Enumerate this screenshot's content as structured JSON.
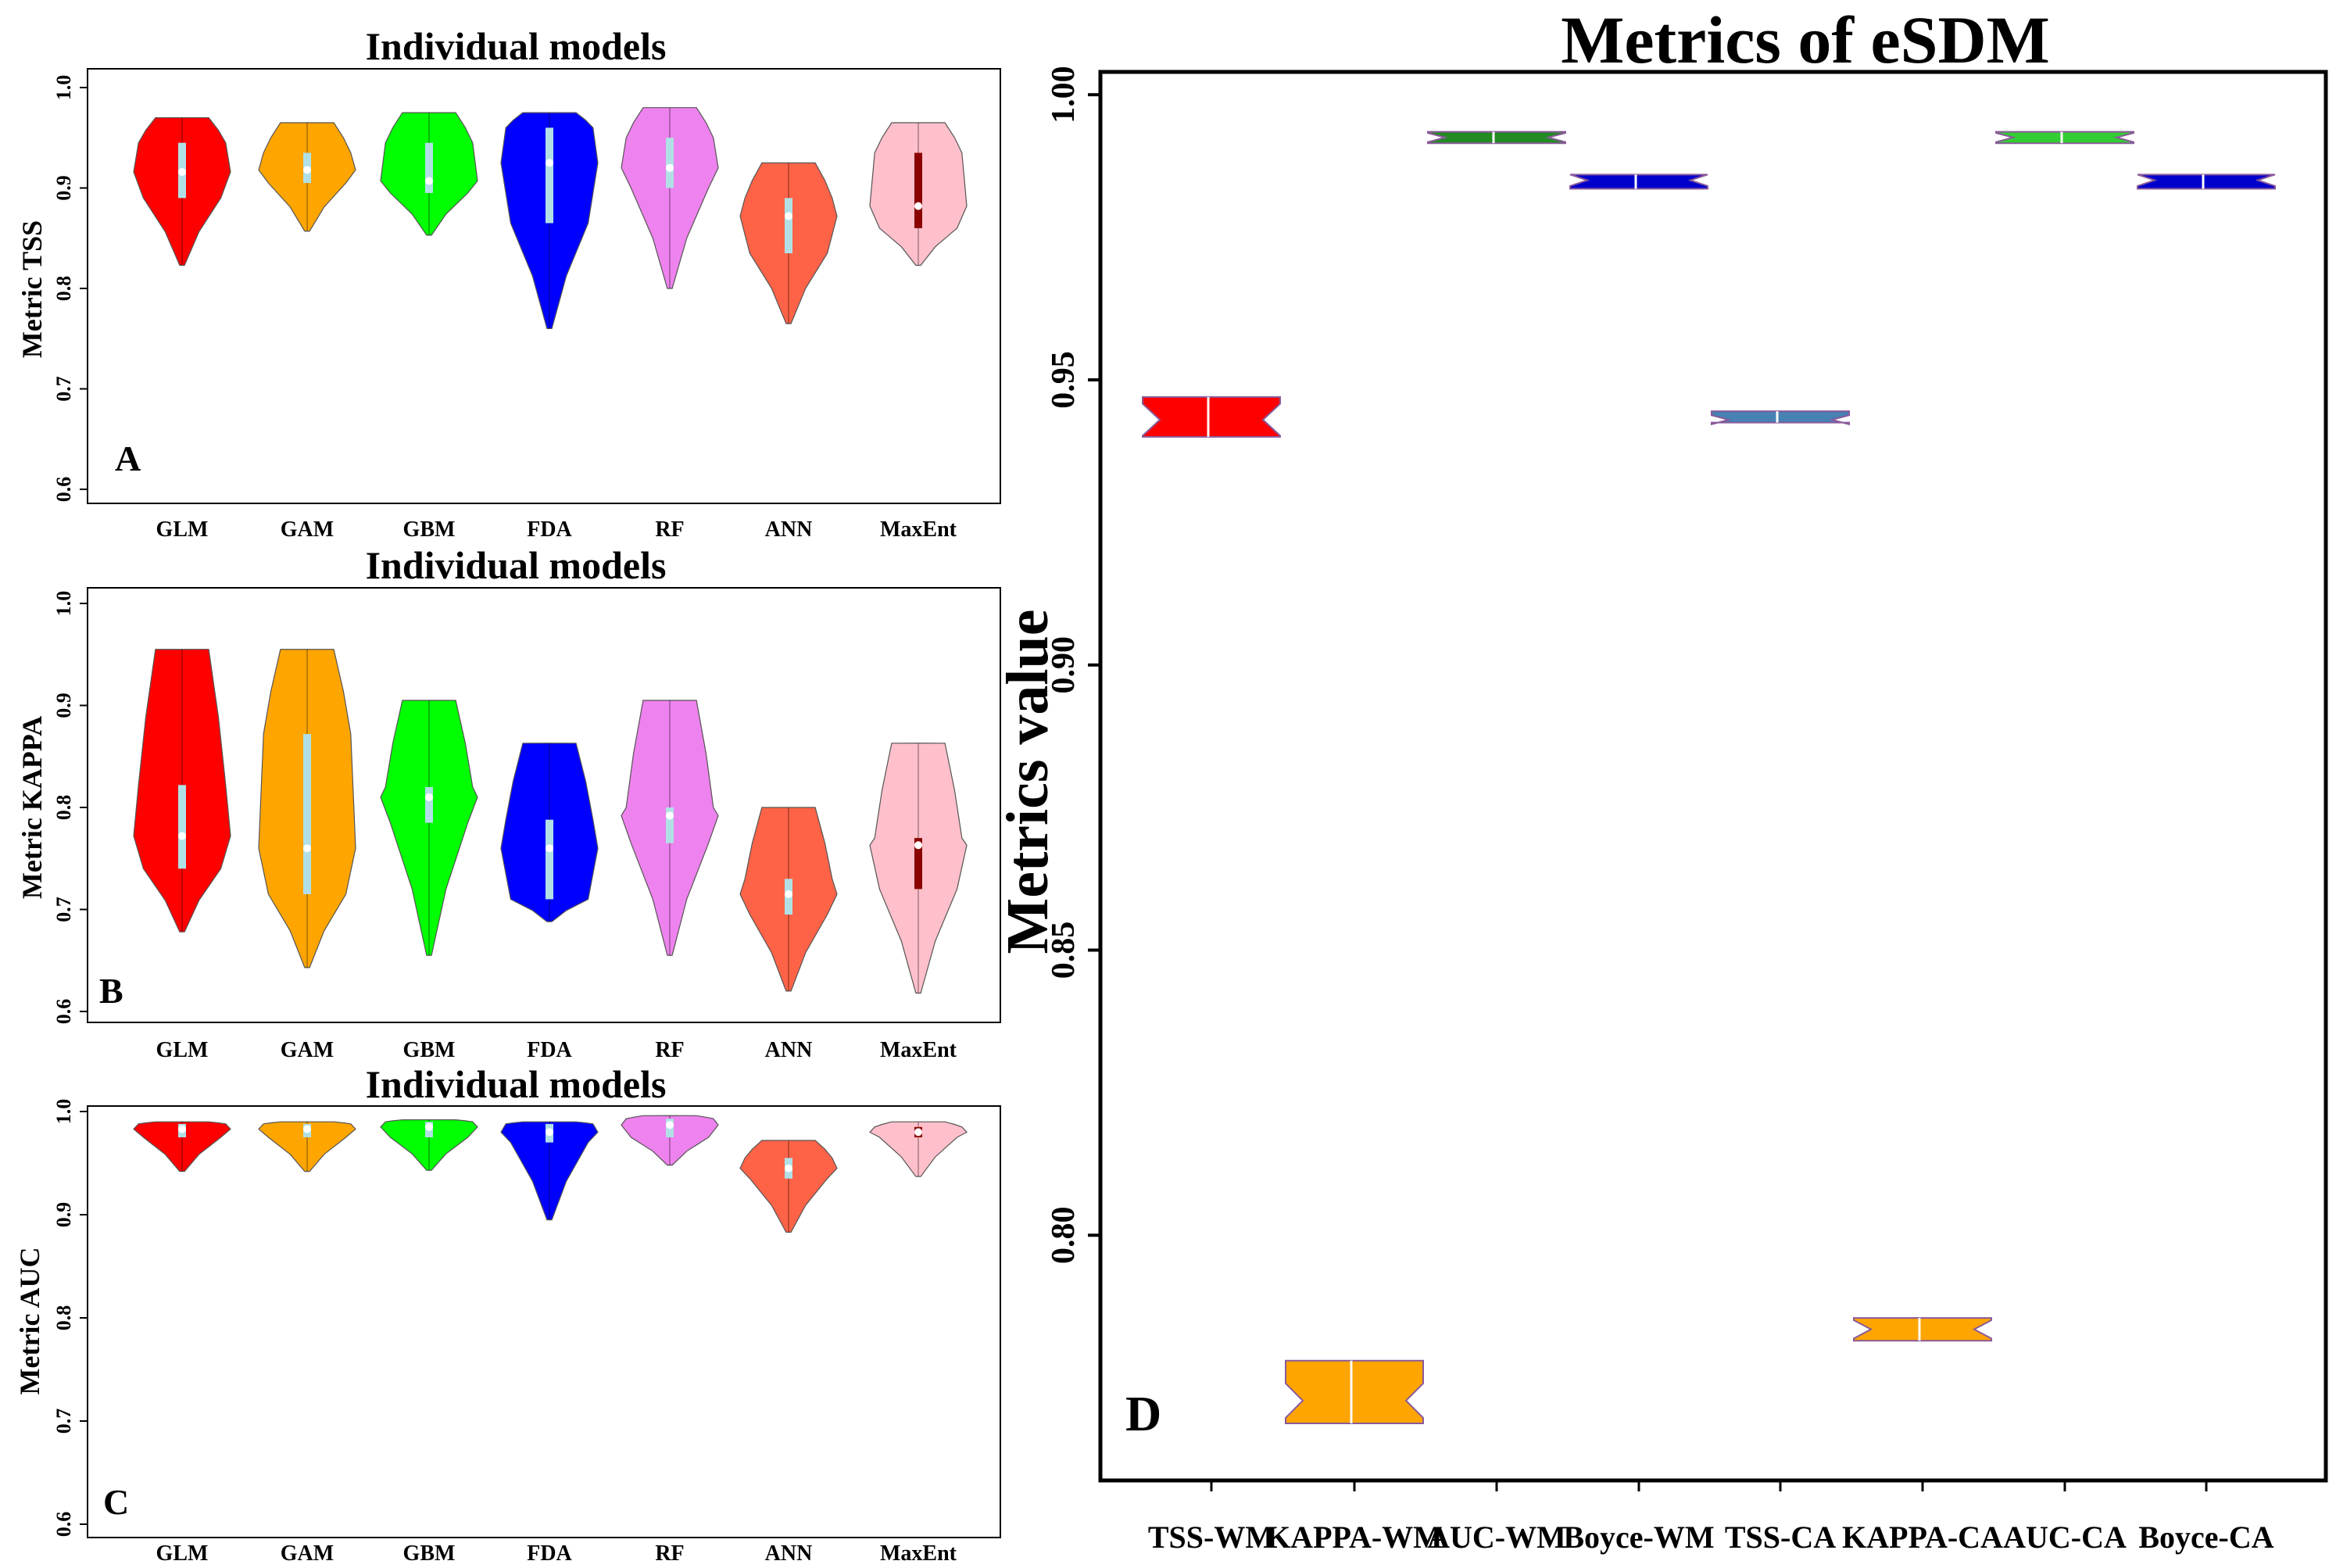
{
  "figure": {
    "panels": [
      {
        "id": "A",
        "title": "Individual models",
        "ylabel": "Metric TSS",
        "letter": "A"
      },
      {
        "id": "B",
        "title": "Individual models",
        "ylabel": "Metric KAPPA",
        "letter": "B"
      },
      {
        "id": "C",
        "title": "Individual models",
        "ylabel": "Metric AUC",
        "letter": "C"
      },
      {
        "id": "D",
        "title": "Metrics of eSDM",
        "ylabel": "Metrics value",
        "letter": "D"
      }
    ]
  },
  "chart_data": [
    {
      "type": "violin",
      "title": "Individual models",
      "xlabel": "",
      "ylabel": "Metric TSS",
      "ylim": [
        0.6,
        1.0
      ],
      "yticks": [
        0.6,
        0.7,
        0.8,
        0.9,
        1.0
      ],
      "ytick_labels": [
        "0.6",
        "0.7",
        "0.8",
        "0.9",
        "1.0"
      ],
      "categories": [
        "GLM",
        "GAM",
        "GBM",
        "FDA",
        "RF",
        "ANN",
        "MaxEnt"
      ],
      "colors": [
        "#ff0000",
        "#ffa500",
        "#00ff00",
        "#0000ff",
        "#ee82ee",
        "#ff6347",
        "#ffc0cb"
      ],
      "series": [
        {
          "min": 0.823,
          "q1": 0.89,
          "median": 0.916,
          "q3": 0.945,
          "max": 0.97
        },
        {
          "min": 0.857,
          "q1": 0.905,
          "median": 0.918,
          "q3": 0.935,
          "max": 0.965
        },
        {
          "min": 0.853,
          "q1": 0.895,
          "median": 0.907,
          "q3": 0.945,
          "max": 0.975
        },
        {
          "min": 0.76,
          "q1": 0.865,
          "median": 0.925,
          "q3": 0.96,
          "max": 0.975
        },
        {
          "min": 0.8,
          "q1": 0.9,
          "median": 0.92,
          "q3": 0.95,
          "max": 0.98
        },
        {
          "min": 0.765,
          "q1": 0.835,
          "median": 0.872,
          "q3": 0.89,
          "max": 0.925
        },
        {
          "min": 0.823,
          "q1": 0.86,
          "median": 0.882,
          "q3": 0.935,
          "max": 0.965
        }
      ]
    },
    {
      "type": "violin",
      "title": "Individual models",
      "xlabel": "",
      "ylabel": "Metric KAPPA",
      "ylim": [
        0.6,
        1.0
      ],
      "yticks": [
        0.6,
        0.7,
        0.8,
        0.9,
        1.0
      ],
      "ytick_labels": [
        "0.6",
        "0.7",
        "0.8",
        "0.9",
        "1.0"
      ],
      "categories": [
        "GLM",
        "GAM",
        "GBM",
        "FDA",
        "RF",
        "ANN",
        "MaxEnt"
      ],
      "colors": [
        "#ff0000",
        "#ffa500",
        "#00ff00",
        "#0000ff",
        "#ee82ee",
        "#ff6347",
        "#ffc0cb"
      ],
      "series": [
        {
          "min": 0.678,
          "q1": 0.74,
          "median": 0.772,
          "q3": 0.822,
          "max": 0.955
        },
        {
          "min": 0.643,
          "q1": 0.715,
          "median": 0.76,
          "q3": 0.872,
          "max": 0.955
        },
        {
          "min": 0.655,
          "q1": 0.785,
          "median": 0.81,
          "q3": 0.82,
          "max": 0.905
        },
        {
          "min": 0.688,
          "q1": 0.71,
          "median": 0.76,
          "q3": 0.788,
          "max": 0.863
        },
        {
          "min": 0.655,
          "q1": 0.765,
          "median": 0.792,
          "q3": 0.8,
          "max": 0.905
        },
        {
          "min": 0.62,
          "q1": 0.695,
          "median": 0.715,
          "q3": 0.73,
          "max": 0.8
        },
        {
          "min": 0.618,
          "q1": 0.72,
          "median": 0.763,
          "q3": 0.77,
          "max": 0.863
        }
      ]
    },
    {
      "type": "violin",
      "title": "Individual models",
      "xlabel": "",
      "ylabel": "Metric AUC",
      "ylim": [
        0.6,
        1.0
      ],
      "yticks": [
        0.6,
        0.7,
        0.8,
        0.9,
        1.0
      ],
      "ytick_labels": [
        "0.6",
        "0.7",
        "0.8",
        "0.9",
        "1.0"
      ],
      "categories": [
        "GLM",
        "GAM",
        "GBM",
        "FDA",
        "RF",
        "ANN",
        "MaxEnt"
      ],
      "colors": [
        "#ff0000",
        "#ffa500",
        "#00ff00",
        "#0000ff",
        "#ee82ee",
        "#ff6347",
        "#ffc0cb"
      ],
      "series": [
        {
          "min": 0.942,
          "q1": 0.975,
          "median": 0.983,
          "q3": 0.988,
          "max": 0.99
        },
        {
          "min": 0.942,
          "q1": 0.975,
          "median": 0.983,
          "q3": 0.988,
          "max": 0.99
        },
        {
          "min": 0.943,
          "q1": 0.975,
          "median": 0.985,
          "q3": 0.99,
          "max": 0.992
        },
        {
          "min": 0.895,
          "q1": 0.97,
          "median": 0.98,
          "q3": 0.988,
          "max": 0.99
        },
        {
          "min": 0.948,
          "q1": 0.975,
          "median": 0.987,
          "q3": 0.993,
          "max": 0.996
        },
        {
          "min": 0.883,
          "q1": 0.935,
          "median": 0.945,
          "q3": 0.955,
          "max": 0.972
        },
        {
          "min": 0.937,
          "q1": 0.975,
          "median": 0.98,
          "q3": 0.985,
          "max": 0.99
        }
      ]
    },
    {
      "type": "box",
      "title": "Metrics of eSDM",
      "xlabel": "",
      "ylabel": "Metrics value",
      "ylim": [
        0.757,
        1.004
      ],
      "yticks": [
        0.8,
        0.85,
        0.9,
        0.95,
        1.0
      ],
      "ytick_labels": [
        "0.80",
        "0.85",
        "0.90",
        "0.95",
        "1.00"
      ],
      "categories": [
        "TSS-WM",
        "KAPPA-WM",
        "AUC-WM",
        "Boyce-WM",
        "TSS-CA",
        "KAPPA-CA",
        "AUC-CA",
        "Boyce-CA"
      ],
      "fill_colors": [
        "#ff0000",
        "#ffa500",
        "#228b22",
        "#0000cd",
        "#4682b4",
        "#ffa500",
        "#32cd32",
        "#0000cd"
      ],
      "series": [
        {
          "low": 0.94,
          "median": 0.943,
          "high": 0.947
        },
        {
          "low": 0.767,
          "median": 0.771,
          "high": 0.778
        },
        {
          "low": 0.9915,
          "median": 0.9925,
          "high": 0.9935
        },
        {
          "low": 0.9835,
          "median": 0.985,
          "high": 0.986
        },
        {
          "low": 0.9425,
          "median": 0.943,
          "high": 0.9445
        },
        {
          "low": 0.7815,
          "median": 0.7835,
          "high": 0.7855
        },
        {
          "low": 0.9915,
          "median": 0.9925,
          "high": 0.9935
        },
        {
          "low": 0.9835,
          "median": 0.985,
          "high": 0.986
        }
      ]
    }
  ]
}
